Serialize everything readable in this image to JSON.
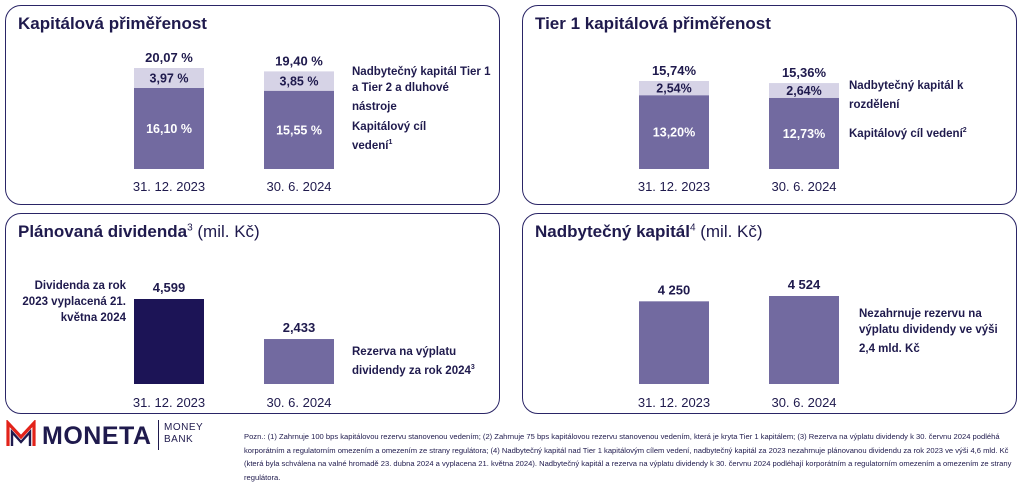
{
  "panels": [
    {
      "id": "kapitalova",
      "title": "Kapitálová přiměřenost",
      "title_suffix_sup": "",
      "title_suffix_normal": "",
      "legend": [
        {
          "text": "Nadbytečný kapitál Tier 1 a Tier 2 a dluhové nástroje",
          "sup": ""
        },
        {
          "text": "Kapitálový cíl vedení",
          "sup": "1"
        }
      ]
    },
    {
      "id": "tier1",
      "title": "Tier 1 kapitálová přiměřenost",
      "title_suffix_sup": "",
      "title_suffix_normal": "",
      "legend": [
        {
          "text": "Nadbytečný kapitál k rozdělení",
          "sup": ""
        },
        {
          "text": "Kapitálový cíl vedení",
          "sup": "2"
        }
      ]
    },
    {
      "id": "dividenda",
      "title": "Plánovaná dividenda",
      "title_suffix_sup": "3",
      "title_suffix_normal": " (mil. Kč)",
      "left_note": "Dividenda za rok 2023 vyplacená 21. května 2024",
      "legend": [
        {
          "text": "Rezerva na výplatu dividendy za rok 2024",
          "sup": "3"
        }
      ]
    },
    {
      "id": "nadbytecny",
      "title": "Nadbytečný kapitál",
      "title_suffix_sup": "4",
      "title_suffix_normal": " (mil. Kč)",
      "legend": [
        {
          "text": "Nezahrnuje rezervu na výplatu dividendy ve výši 2,4 mld. Kč",
          "sup": ""
        }
      ]
    }
  ],
  "chart_data": [
    {
      "type": "bar",
      "stacked": true,
      "title": "Kapitálová přiměřenost",
      "categories": [
        "31. 12. 2023",
        "30. 6. 2024"
      ],
      "series": [
        {
          "values": [
            16.1,
            15.55
          ],
          "labels": [
            "16,10 %",
            "15,55 %"
          ],
          "color": "#726aa0"
        },
        {
          "values": [
            3.97,
            3.85
          ],
          "labels": [
            "3,97 %",
            "3,85 %"
          ],
          "color": "#d6d3e6"
        }
      ],
      "totals": [
        "20,07 %",
        "19,40 %"
      ],
      "ylim": [
        0,
        20.07
      ]
    },
    {
      "type": "bar",
      "stacked": true,
      "title": "Tier 1 kapitálová přiměřenost",
      "categories": [
        "31. 12. 2023",
        "30. 6. 2024"
      ],
      "series": [
        {
          "values": [
            13.2,
            12.73
          ],
          "labels": [
            "13,20%",
            "12,73%"
          ],
          "color": "#726aa0"
        },
        {
          "values": [
            2.54,
            2.64
          ],
          "labels": [
            "2,54%",
            "2,64%"
          ],
          "color": "#d6d3e6"
        }
      ],
      "totals": [
        "15,74%",
        "15,36%"
      ],
      "ylim": [
        0,
        15.74
      ]
    },
    {
      "type": "bar",
      "title": "Plánovaná dividenda",
      "categories": [
        "31. 12. 2023",
        "30. 6. 2024"
      ],
      "values": [
        4599,
        2433
      ],
      "value_labels": [
        "4,599",
        "2,433"
      ],
      "colors": [
        "#1c1456",
        "#726aa0"
      ],
      "ylim": [
        0,
        4599
      ]
    },
    {
      "type": "bar",
      "title": "Nadbytečný kapitál",
      "categories": [
        "31. 12. 2023",
        "30. 6. 2024"
      ],
      "values": [
        4250,
        4524
      ],
      "value_labels": [
        "4 250",
        "4 524"
      ],
      "colors": [
        "#726aa0",
        "#726aa0"
      ],
      "ylim": [
        0,
        4524
      ]
    }
  ],
  "logo": {
    "name": "MONETA",
    "sub_line1": "MONEY",
    "sub_line2": "BANK"
  },
  "footnote": "Pozn.: (1) Zahrnuje 100 bps kapitálovou rezervu stanovenou vedením; (2) Zahrnuje 75 bps kapitálovou rezervu stanovenou vedením, která je kryta Tier 1 kapitálem; (3) Rezerva na výplatu dividendy k 30. červnu 2024 podléhá korporátním a regulatorním omezením a omezením ze strany regulátora; (4) Nadbytečný kapitál nad Tier 1 kapitálovým cílem vedení, nadbytečný kapitál za 2023 nezahrnuje plánovanou dividendu za rok 2023 ve výši 4,6 mld. Kč (která byla schválena na valné hromadě 23. dubna 2024 a vyplacena 21. května 2024). Nadbytečný kapitál a rezerva na výplatu dividendy k 30. červnu 2024 podléhají korporátním a regulatorním omezením a omezením ze strany regulátora."
}
